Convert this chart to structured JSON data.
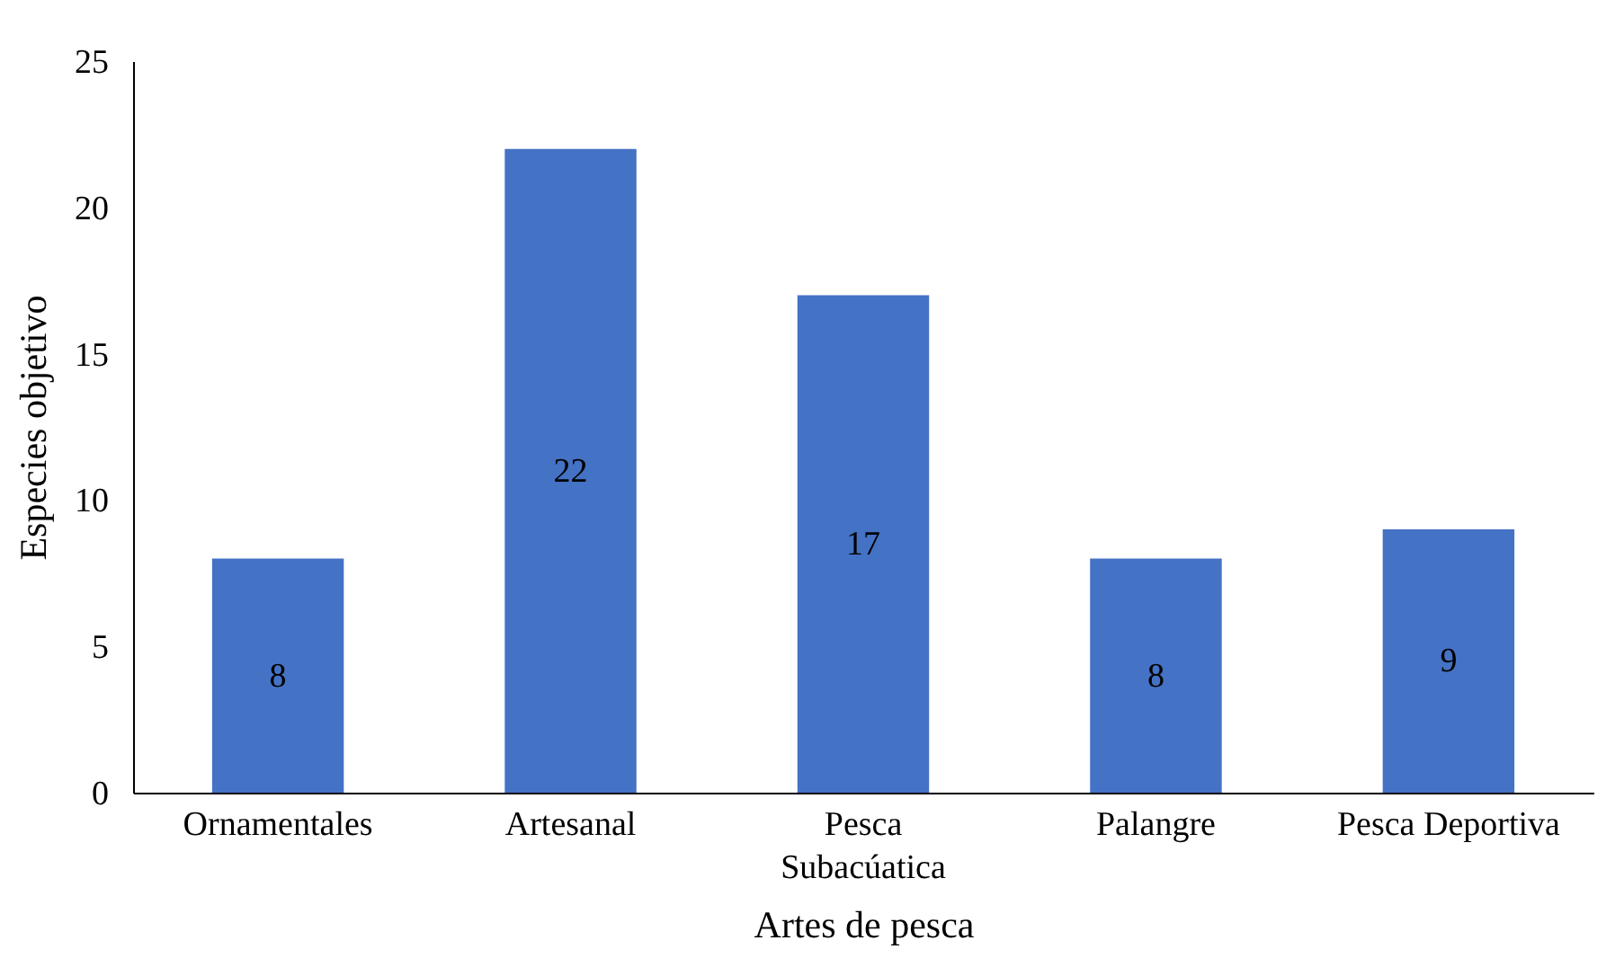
{
  "chart_data": {
    "type": "bar",
    "xlabel": "Artes de pesca",
    "ylabel": "Especies objetivo",
    "categories": [
      "Ornamentales",
      "Artesanal",
      "Pesca Subacúatica",
      "Palangre",
      "Pesca Deportiva"
    ],
    "values": [
      8,
      22,
      17,
      8,
      9
    ],
    "color": "#4472c4",
    "ylim": [
      0,
      25
    ],
    "yticks": [
      0,
      5,
      10,
      15,
      20,
      25
    ],
    "grid": false,
    "data_labels": true
  }
}
